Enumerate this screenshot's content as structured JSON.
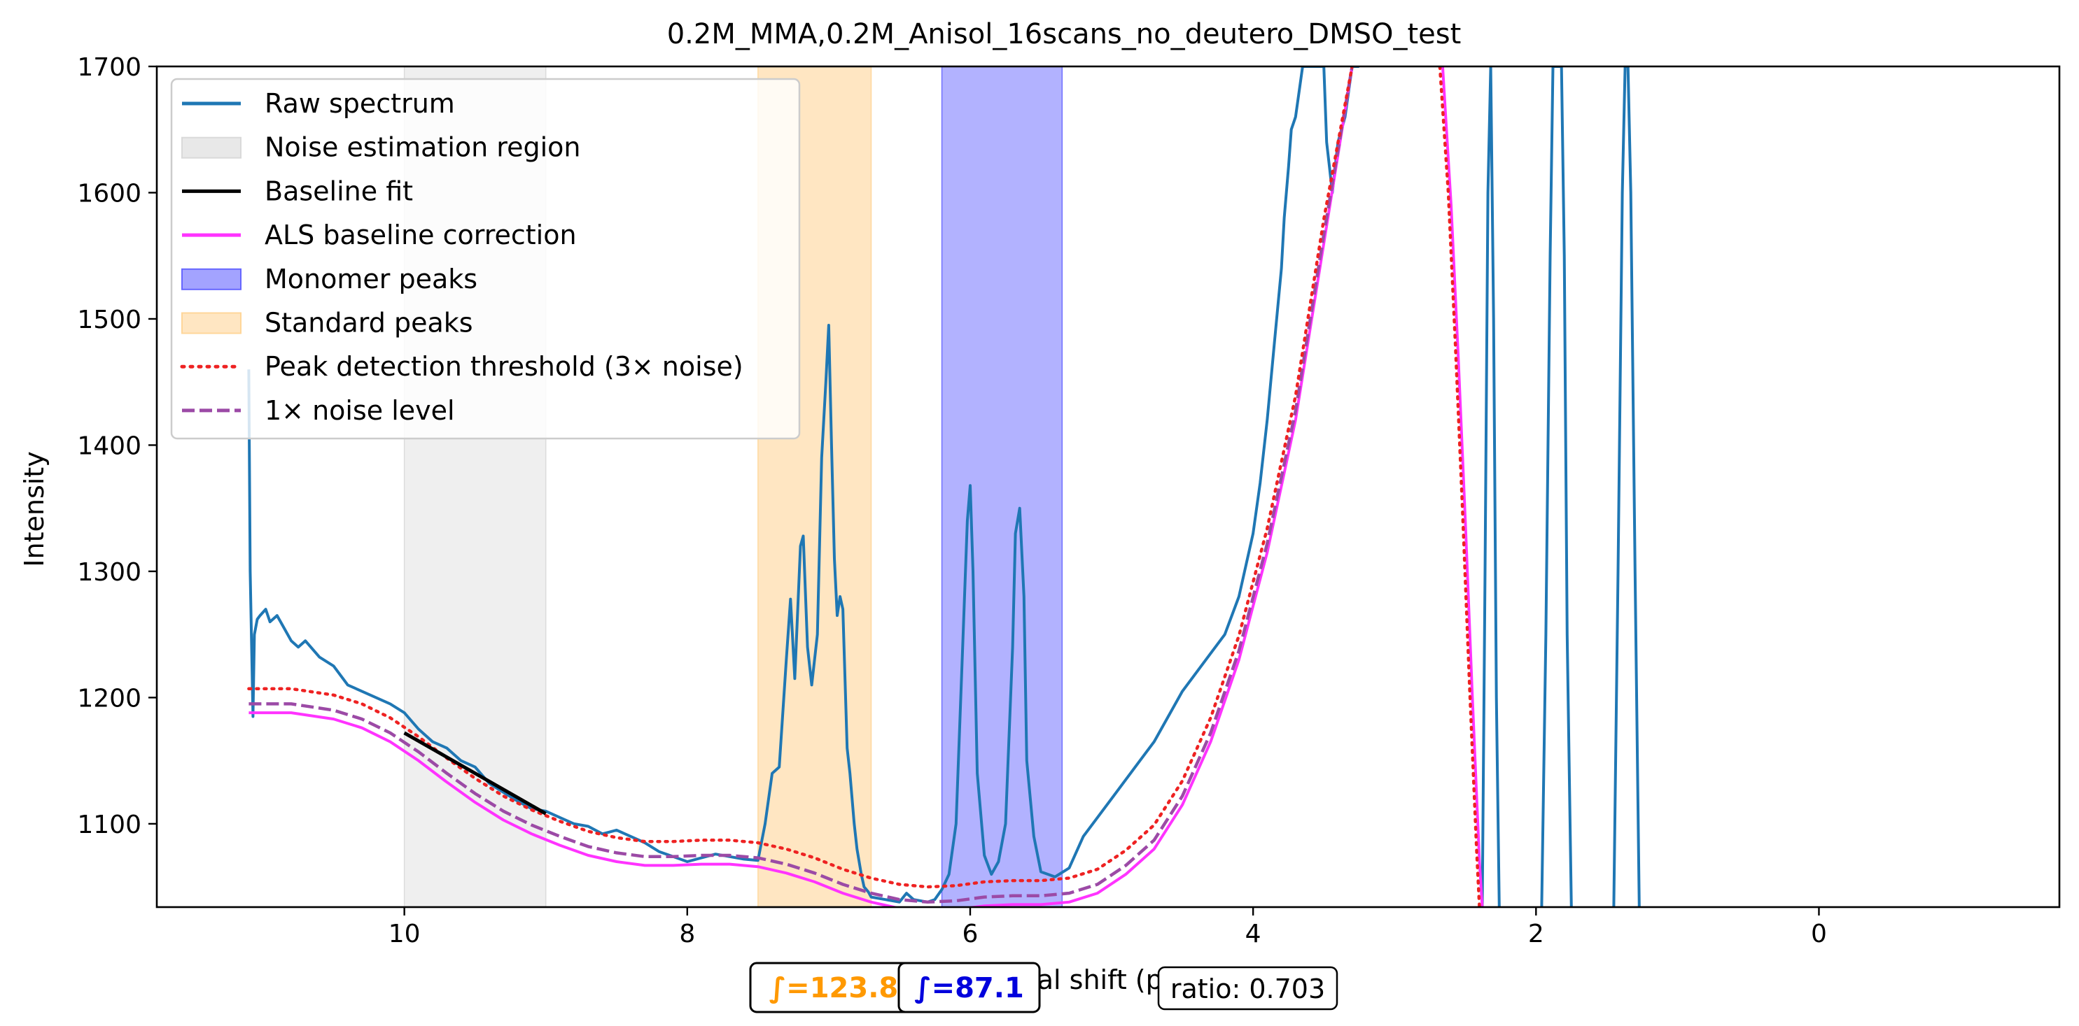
{
  "chart_data": {
    "type": "line",
    "title": "0.2M_MMA,0.2M_Anisol_16scans_no_deutero_DMSO_test",
    "xlabel": "Chemical shift (ppm)",
    "ylabel": "Intensity",
    "xlim": [
      11.75,
      -1.7
    ],
    "ylim": [
      1034,
      1700
    ],
    "x_ticks": [
      10,
      8,
      6,
      4,
      2,
      0
    ],
    "x_tick_labels": [
      "10",
      "8",
      "6",
      "4",
      "2",
      "0"
    ],
    "y_ticks": [
      1100,
      1200,
      1300,
      1400,
      1500,
      1600,
      1700
    ],
    "y_tick_labels": [
      "1100",
      "1200",
      "1300",
      "1400",
      "1500",
      "1600",
      "1700"
    ],
    "grid": false,
    "legend_position": "upper-left",
    "legend": [
      {
        "label": "Raw spectrum",
        "kind": "line",
        "color": "#1f77b4"
      },
      {
        "label": "Noise estimation region",
        "kind": "patch",
        "color": "#d9d9d9"
      },
      {
        "label": "Baseline fit",
        "kind": "line",
        "color": "#000000"
      },
      {
        "label": "ALS baseline correction",
        "kind": "line",
        "color": "#ff33ff"
      },
      {
        "label": "Monomer peaks",
        "kind": "patch",
        "color": "#6666ff"
      },
      {
        "label": "Standard peaks",
        "kind": "patch",
        "color": "#ffd699"
      },
      {
        "label": "Peak detection threshold (3× noise)",
        "kind": "dotted",
        "color": "#ee2222"
      },
      {
        "label": "1× noise level",
        "kind": "dashed",
        "color": "#9c4aa6"
      }
    ],
    "regions": [
      {
        "name": "Noise estimation region",
        "x_range": [
          10.0,
          9.0
        ],
        "color": "#d9d9d9",
        "opacity": 0.42
      },
      {
        "name": "Standard peaks",
        "x_range": [
          7.5,
          6.7
        ],
        "color": "#ffd699",
        "opacity": 0.6
      },
      {
        "name": "Monomer peaks",
        "x_range": [
          6.2,
          5.35
        ],
        "color": "#6666ff",
        "opacity": 0.5
      }
    ],
    "series": [
      {
        "name": "Raw spectrum",
        "color": "#1f77b4",
        "style": "solid",
        "x": [
          11.1,
          11.09,
          11.07,
          11.06,
          11.04,
          11.02,
          10.98,
          10.95,
          10.9,
          10.85,
          10.8,
          10.75,
          10.7,
          10.6,
          10.5,
          10.4,
          10.3,
          10.2,
          10.1,
          10.0,
          9.9,
          9.8,
          9.7,
          9.6,
          9.5,
          9.4,
          9.3,
          9.2,
          9.1,
          9.0,
          8.9,
          8.8,
          8.7,
          8.6,
          8.5,
          8.4,
          8.3,
          8.2,
          8.1,
          8.0,
          7.9,
          7.8,
          7.7,
          7.6,
          7.5,
          7.45,
          7.4,
          7.35,
          7.3,
          7.27,
          7.24,
          7.2,
          7.18,
          7.15,
          7.12,
          7.08,
          7.05,
          7.02,
          7.0,
          6.98,
          6.96,
          6.94,
          6.92,
          6.9,
          6.87,
          6.85,
          6.82,
          6.8,
          6.77,
          6.75,
          6.72,
          6.7,
          6.6,
          6.5,
          6.45,
          6.4,
          6.3,
          6.25,
          6.2,
          6.15,
          6.1,
          6.05,
          6.02,
          6.0,
          5.98,
          5.95,
          5.9,
          5.85,
          5.8,
          5.75,
          5.7,
          5.68,
          5.65,
          5.62,
          5.6,
          5.55,
          5.5,
          5.45,
          5.4,
          5.3,
          5.2,
          5.1,
          5.0,
          4.9,
          4.8,
          4.7,
          4.6,
          4.5,
          4.4,
          4.3,
          4.2,
          4.1,
          4.0,
          3.95,
          3.9,
          3.85,
          3.8,
          3.78,
          3.75,
          3.73,
          3.7,
          3.65,
          3.6,
          3.55,
          3.5,
          3.48,
          3.46,
          3.44,
          3.42,
          3.4,
          3.35,
          3.3,
          3.25
        ],
        "y": [
          1460,
          1300,
          1185,
          1250,
          1262,
          1265,
          1270,
          1260,
          1265,
          1255,
          1245,
          1240,
          1245,
          1232,
          1225,
          1210,
          1205,
          1200,
          1195,
          1188,
          1175,
          1165,
          1160,
          1150,
          1145,
          1132,
          1125,
          1118,
          1112,
          1110,
          1105,
          1100,
          1098,
          1092,
          1095,
          1090,
          1085,
          1078,
          1074,
          1070,
          1073,
          1076,
          1074,
          1072,
          1071,
          1100,
          1140,
          1145,
          1230,
          1278,
          1215,
          1320,
          1328,
          1240,
          1210,
          1250,
          1390,
          1450,
          1495,
          1400,
          1310,
          1265,
          1280,
          1270,
          1160,
          1140,
          1100,
          1080,
          1060,
          1050,
          1046,
          1042,
          1040,
          1038,
          1045,
          1040,
          1038,
          1040,
          1048,
          1060,
          1100,
          1250,
          1340,
          1368,
          1300,
          1140,
          1075,
          1060,
          1070,
          1100,
          1240,
          1330,
          1350,
          1280,
          1150,
          1090,
          1062,
          1060,
          1058,
          1065,
          1090,
          1105,
          1120,
          1135,
          1150,
          1165,
          1185,
          1205,
          1220,
          1235,
          1250,
          1280,
          1330,
          1370,
          1420,
          1480,
          1540,
          1580,
          1620,
          1650,
          1660,
          1700,
          1700,
          1700,
          1700,
          1640,
          1620,
          1600,
          1620,
          1640,
          1660,
          1700,
          1700
        ]
      },
      {
        "name": "Raw spectrum (continued)",
        "color": "#1f77b4",
        "style": "solid",
        "x": [
          2.38,
          2.36,
          2.34,
          2.32,
          2.3,
          2.28,
          2.26
        ],
        "y": [
          1034,
          1300,
          1600,
          1700,
          1500,
          1200,
          1034
        ]
      },
      {
        "name": "Raw spectrum (continued)",
        "color": "#1f77b4",
        "style": "solid",
        "x": [
          1.96,
          1.93,
          1.9,
          1.88,
          1.86,
          1.84,
          1.82,
          1.8,
          1.78,
          1.75
        ],
        "y": [
          1034,
          1250,
          1550,
          1700,
          1700,
          1700,
          1700,
          1550,
          1250,
          1034
        ]
      },
      {
        "name": "Raw spectrum (continued)",
        "color": "#1f77b4",
        "style": "solid",
        "x": [
          1.45,
          1.42,
          1.39,
          1.37,
          1.35,
          1.33,
          1.3,
          1.27
        ],
        "y": [
          1034,
          1300,
          1600,
          1700,
          1700,
          1600,
          1300,
          1034
        ]
      },
      {
        "name": "ALS baseline correction",
        "color": "#ff33ff",
        "style": "solid",
        "x": [
          11.1,
          10.8,
          10.5,
          10.3,
          10.1,
          9.9,
          9.7,
          9.5,
          9.3,
          9.1,
          8.9,
          8.7,
          8.5,
          8.3,
          8.1,
          7.9,
          7.7,
          7.5,
          7.3,
          7.1,
          6.9,
          6.7,
          6.5,
          6.3,
          6.1,
          5.9,
          5.7,
          5.5,
          5.3,
          5.1,
          4.9,
          4.7,
          4.5,
          4.3,
          4.1,
          3.9,
          3.7,
          3.5,
          3.3
        ],
        "y": [
          1188,
          1188,
          1183,
          1176,
          1165,
          1150,
          1133,
          1117,
          1103,
          1092,
          1083,
          1075,
          1070,
          1067,
          1067,
          1068,
          1068,
          1066,
          1061,
          1054,
          1045,
          1038,
          1033,
          1031,
          1032,
          1035,
          1036,
          1036,
          1038,
          1045,
          1060,
          1080,
          1115,
          1165,
          1230,
          1315,
          1420,
          1560,
          1700
        ]
      },
      {
        "name": "ALS baseline correction (right)",
        "color": "#ff33ff",
        "style": "solid",
        "x": [
          2.66,
          2.6,
          2.55,
          2.5,
          2.45,
          2.4,
          2.38
        ],
        "y": [
          1700,
          1590,
          1470,
          1340,
          1200,
          1070,
          1034
        ]
      },
      {
        "name": "1× noise level",
        "color": "#9c4aa6",
        "style": "dashed",
        "x": [
          11.1,
          10.8,
          10.5,
          10.3,
          10.1,
          9.9,
          9.7,
          9.5,
          9.3,
          9.1,
          8.9,
          8.7,
          8.5,
          8.3,
          8.1,
          7.9,
          7.7,
          7.5,
          7.3,
          7.1,
          6.9,
          6.7,
          6.5,
          6.3,
          6.1,
          5.9,
          5.7,
          5.5,
          5.3,
          5.1,
          4.9,
          4.7,
          4.5,
          4.3,
          4.1,
          3.9,
          3.7,
          3.5,
          3.3
        ],
        "y": [
          1195,
          1195,
          1190,
          1183,
          1172,
          1157,
          1140,
          1124,
          1110,
          1099,
          1090,
          1082,
          1077,
          1074,
          1074,
          1075,
          1075,
          1073,
          1068,
          1061,
          1052,
          1045,
          1040,
          1038,
          1039,
          1042,
          1043,
          1043,
          1045,
          1052,
          1067,
          1087,
          1122,
          1172,
          1237,
          1322,
          1427,
          1567,
          1700
        ]
      },
      {
        "name": "Peak detection threshold (3× noise)",
        "color": "#ee2222",
        "style": "dotted",
        "x": [
          11.1,
          10.8,
          10.5,
          10.3,
          10.1,
          9.9,
          9.7,
          9.5,
          9.3,
          9.1,
          8.9,
          8.7,
          8.5,
          8.3,
          8.1,
          7.9,
          7.7,
          7.5,
          7.3,
          7.1,
          6.9,
          6.7,
          6.5,
          6.3,
          6.1,
          5.9,
          5.7,
          5.5,
          5.3,
          5.1,
          4.9,
          4.7,
          4.5,
          4.3,
          4.1,
          3.9,
          3.7,
          3.5,
          3.3
        ],
        "y": [
          1207,
          1207,
          1202,
          1195,
          1184,
          1169,
          1152,
          1136,
          1122,
          1111,
          1102,
          1094,
          1089,
          1086,
          1086,
          1087,
          1087,
          1085,
          1080,
          1073,
          1064,
          1057,
          1052,
          1050,
          1051,
          1054,
          1055,
          1055,
          1057,
          1064,
          1079,
          1099,
          1134,
          1184,
          1249,
          1334,
          1439,
          1579,
          1700
        ]
      },
      {
        "name": "Peak detection threshold (3× noise, right)",
        "color": "#ee2222",
        "style": "dotted",
        "x": [
          2.68,
          2.62,
          2.57,
          2.52,
          2.47,
          2.42,
          2.4
        ],
        "y": [
          1700,
          1600,
          1480,
          1350,
          1210,
          1080,
          1034
        ]
      },
      {
        "name": "Baseline fit",
        "color": "#000000",
        "style": "solid",
        "x": [
          10.0,
          9.0
        ],
        "y": [
          1172,
          1108
        ]
      }
    ],
    "annotations": [
      {
        "text": "∫=123.8",
        "color": "#ff9900",
        "bold": true
      },
      {
        "text": "∫=87.1",
        "color": "#0000dd",
        "bold": true
      },
      {
        "text": "ratio: 0.703",
        "color": "#000000",
        "bold": false
      }
    ]
  }
}
